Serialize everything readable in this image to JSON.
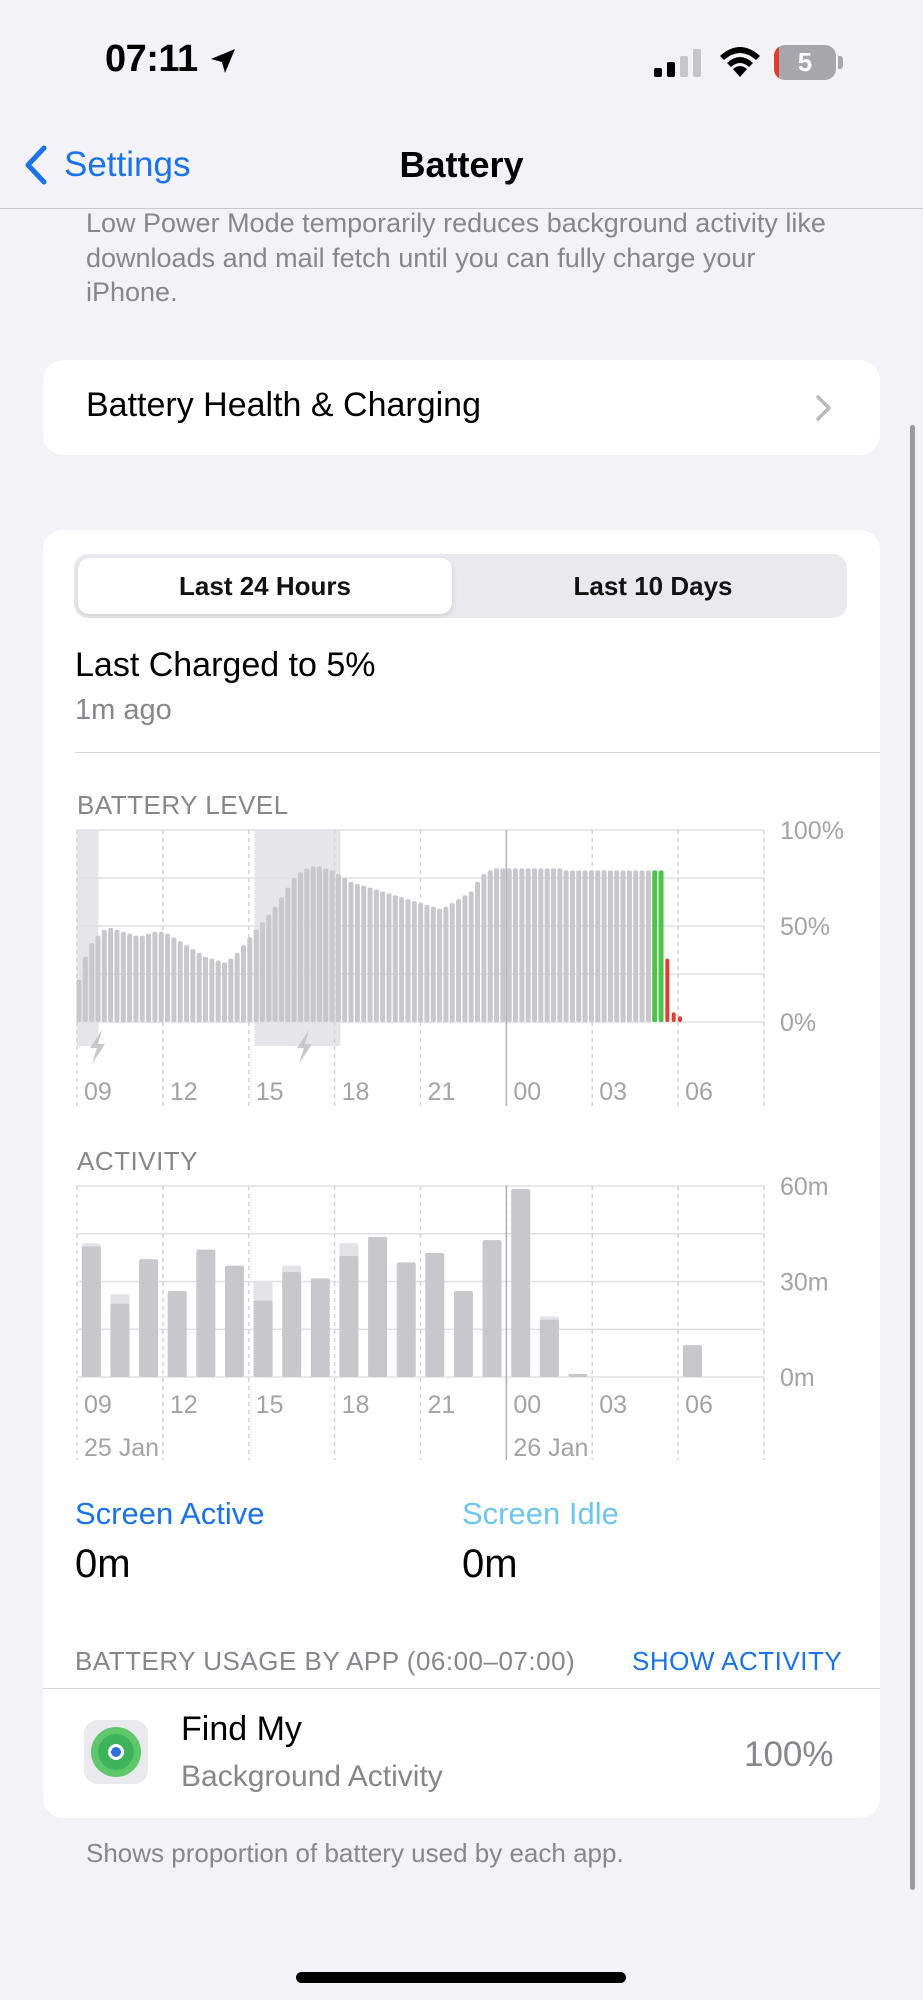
{
  "status_bar": {
    "time": "07:11",
    "battery_level": "5",
    "icons": [
      "location-arrow-icon",
      "cellular-signal-icon",
      "wifi-icon",
      "battery-icon"
    ]
  },
  "nav": {
    "back_label": "Settings",
    "title": "Battery"
  },
  "low_power_description": "Low Power Mode temporarily reduces background activity like downloads and mail fetch until you can fully charge your iPhone.",
  "battery_health_label": "Battery Health & Charging",
  "segmented": {
    "options": [
      "Last 24 Hours",
      "Last 10 Days"
    ],
    "selected": "Last 24 Hours"
  },
  "last_charged": {
    "title": "Last Charged to 5%",
    "subtitle": "1m ago"
  },
  "battery_level_chart": {
    "section_title": "BATTERY LEVEL",
    "y_ticks": [
      "100%",
      "50%",
      "0%"
    ]
  },
  "activity_chart": {
    "section_title": "ACTIVITY",
    "y_ticks": [
      "60m",
      "30m",
      "0m"
    ]
  },
  "x_ticks": [
    "09",
    "12",
    "15",
    "18",
    "21",
    "00",
    "03",
    "06"
  ],
  "date_labels": [
    "25 Jan",
    "26 Jan"
  ],
  "legend": {
    "screen_active_label": "Screen Active",
    "screen_active_value": "0m",
    "screen_idle_label": "Screen Idle",
    "screen_idle_value": "0m"
  },
  "usage": {
    "header": "BATTERY USAGE BY APP (06:00–07:00)",
    "show_activity": "SHOW ACTIVITY",
    "apps": [
      {
        "name": "Find My",
        "subtitle": "Background Activity",
        "percent": "100%"
      }
    ],
    "footnote": "Shows proportion of battery used by each app."
  },
  "colors": {
    "accent": "#1a73e8",
    "screen_idle": "#6ec6f0",
    "bar_gray": "#c7c7cc",
    "charging_green": "#4cc44c",
    "low_red": "#e33b30"
  },
  "chart_data": [
    {
      "type": "bar",
      "title": "BATTERY LEVEL",
      "x_unit": "hour slot (09:00 on 25 Jan to 06:30 on 26 Jan)",
      "x_ticks": [
        "09",
        "12",
        "15",
        "18",
        "21",
        "00",
        "03",
        "06"
      ],
      "ylim": [
        0,
        100
      ],
      "y_ticks": [
        "100%",
        "50%",
        "0%"
      ],
      "values": [
        22,
        34,
        41,
        45,
        48,
        49,
        48,
        47,
        46,
        45,
        45,
        46,
        47,
        47,
        46,
        44,
        42,
        40,
        38,
        36,
        34,
        33,
        32,
        31,
        33,
        36,
        40,
        44,
        48,
        52,
        56,
        60,
        65,
        70,
        75,
        78,
        80,
        81,
        81,
        80,
        79,
        77,
        75,
        73,
        72,
        71,
        70,
        69,
        68,
        67,
        66,
        65,
        64,
        63,
        62,
        61,
        60,
        59,
        60,
        62,
        64,
        66,
        68,
        73,
        77,
        79,
        80,
        80,
        80,
        80,
        80,
        80,
        80,
        80,
        80,
        80,
        80,
        79,
        79,
        79,
        79,
        79,
        79,
        79,
        79,
        79,
        79,
        79,
        79,
        79,
        79,
        79,
        79,
        33,
        5,
        3
      ],
      "bar_colors": "gray except two final full bars green (charging) and last bars red (low)",
      "charging_segments_hours": [
        [
          9.0,
          9.75
        ],
        [
          15.2,
          18.2
        ]
      ]
    },
    {
      "type": "bar",
      "title": "ACTIVITY",
      "x_ticks": [
        "09",
        "12",
        "15",
        "18",
        "21",
        "00",
        "03",
        "06"
      ],
      "x_labels_dates": [
        "25 Jan",
        "26 Jan"
      ],
      "ylim": [
        0,
        60
      ],
      "y_ticks": [
        "60m",
        "30m",
        "0m"
      ],
      "unit": "minutes",
      "hours": [
        "09",
        "10",
        "11",
        "12",
        "13",
        "14",
        "15",
        "16",
        "17",
        "18",
        "19",
        "20",
        "21",
        "22",
        "23",
        "00",
        "01",
        "02",
        "03",
        "04",
        "05",
        "06"
      ],
      "series": [
        {
          "name": "Screen Active",
          "values": [
            41,
            23,
            37,
            27,
            40,
            35,
            24,
            33,
            31,
            38,
            44,
            36,
            39,
            27,
            43,
            59,
            18,
            1,
            0,
            0,
            0,
            10
          ]
        },
        {
          "name": "Screen Idle",
          "values": [
            1,
            3,
            0,
            0,
            0,
            0,
            6,
            2,
            0,
            4,
            0,
            0,
            0,
            0,
            0,
            0,
            1,
            0,
            0,
            0,
            0,
            0
          ]
        }
      ]
    }
  ]
}
